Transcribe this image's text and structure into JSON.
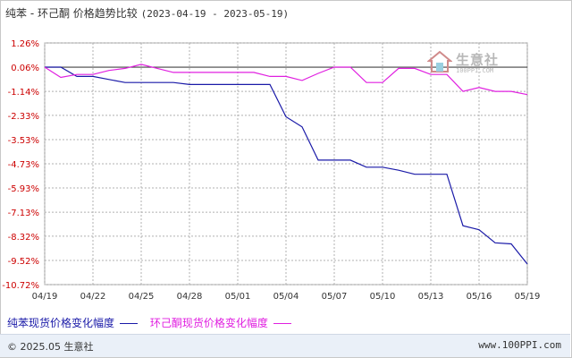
{
  "title": {
    "main": "纯苯 - 环己酮 价格趋势比较",
    "range": "(2023-04-19 - 2023-05-19)"
  },
  "watermark": {
    "text": "生意社",
    "url": "100PPI.COM"
  },
  "footer": {
    "copyright": "© 2025.05 生意社",
    "site": "www.100PPI.com"
  },
  "chart_data": {
    "type": "line",
    "ylim": [
      -10.72,
      1.26
    ],
    "yticks": [
      "1.26%",
      "0.06%",
      "-1.14%",
      "-2.33%",
      "-3.53%",
      "-4.73%",
      "-5.93%",
      "-7.13%",
      "-8.32%",
      "-9.52%",
      "-10.72%"
    ],
    "ytick_values": [
      1.26,
      0.06,
      -1.14,
      -2.33,
      -3.53,
      -4.73,
      -5.93,
      -7.13,
      -8.32,
      -9.52,
      -10.72
    ],
    "x": [
      "04/19",
      "04/20",
      "04/21",
      "04/22",
      "04/23",
      "04/24",
      "04/25",
      "04/26",
      "04/27",
      "04/28",
      "04/29",
      "04/30",
      "05/01",
      "05/02",
      "05/03",
      "05/04",
      "05/05",
      "05/06",
      "05/07",
      "05/08",
      "05/09",
      "05/10",
      "05/11",
      "05/12",
      "05/13",
      "05/14",
      "05/15",
      "05/16",
      "05/17",
      "05/18",
      "05/19"
    ],
    "xticks": [
      "04/19",
      "04/22",
      "04/25",
      "04/28",
      "05/01",
      "05/04",
      "05/07",
      "05/10",
      "05/13",
      "05/16",
      "05/19"
    ],
    "series": [
      {
        "name": "纯苯现货价格变化幅度",
        "color": "#1a1aa8",
        "values": [
          0.06,
          0.06,
          -0.4,
          -0.4,
          -0.55,
          -0.7,
          -0.7,
          -0.7,
          -0.7,
          -0.8,
          -0.8,
          -0.8,
          -0.8,
          -0.8,
          -0.8,
          -2.4,
          -2.9,
          -4.55,
          -4.55,
          -4.55,
          -4.9,
          -4.9,
          -5.05,
          -5.25,
          -5.25,
          -5.25,
          -7.8,
          -8.0,
          -8.65,
          -8.7,
          -9.7
        ]
      },
      {
        "name": "环己酮现货价格变化幅度",
        "color": "#e020e0",
        "values": [
          0.06,
          -0.45,
          -0.3,
          -0.3,
          -0.1,
          0.0,
          0.2,
          0.0,
          -0.2,
          -0.2,
          -0.2,
          -0.2,
          -0.2,
          -0.2,
          -0.4,
          -0.4,
          -0.6,
          -0.25,
          0.06,
          0.06,
          -0.7,
          -0.7,
          0.0,
          0.0,
          -0.3,
          -0.3,
          -1.14,
          -0.95,
          -1.14,
          -1.14,
          -1.3
        ]
      }
    ],
    "grid": true,
    "legend_position": "bottom-left"
  }
}
